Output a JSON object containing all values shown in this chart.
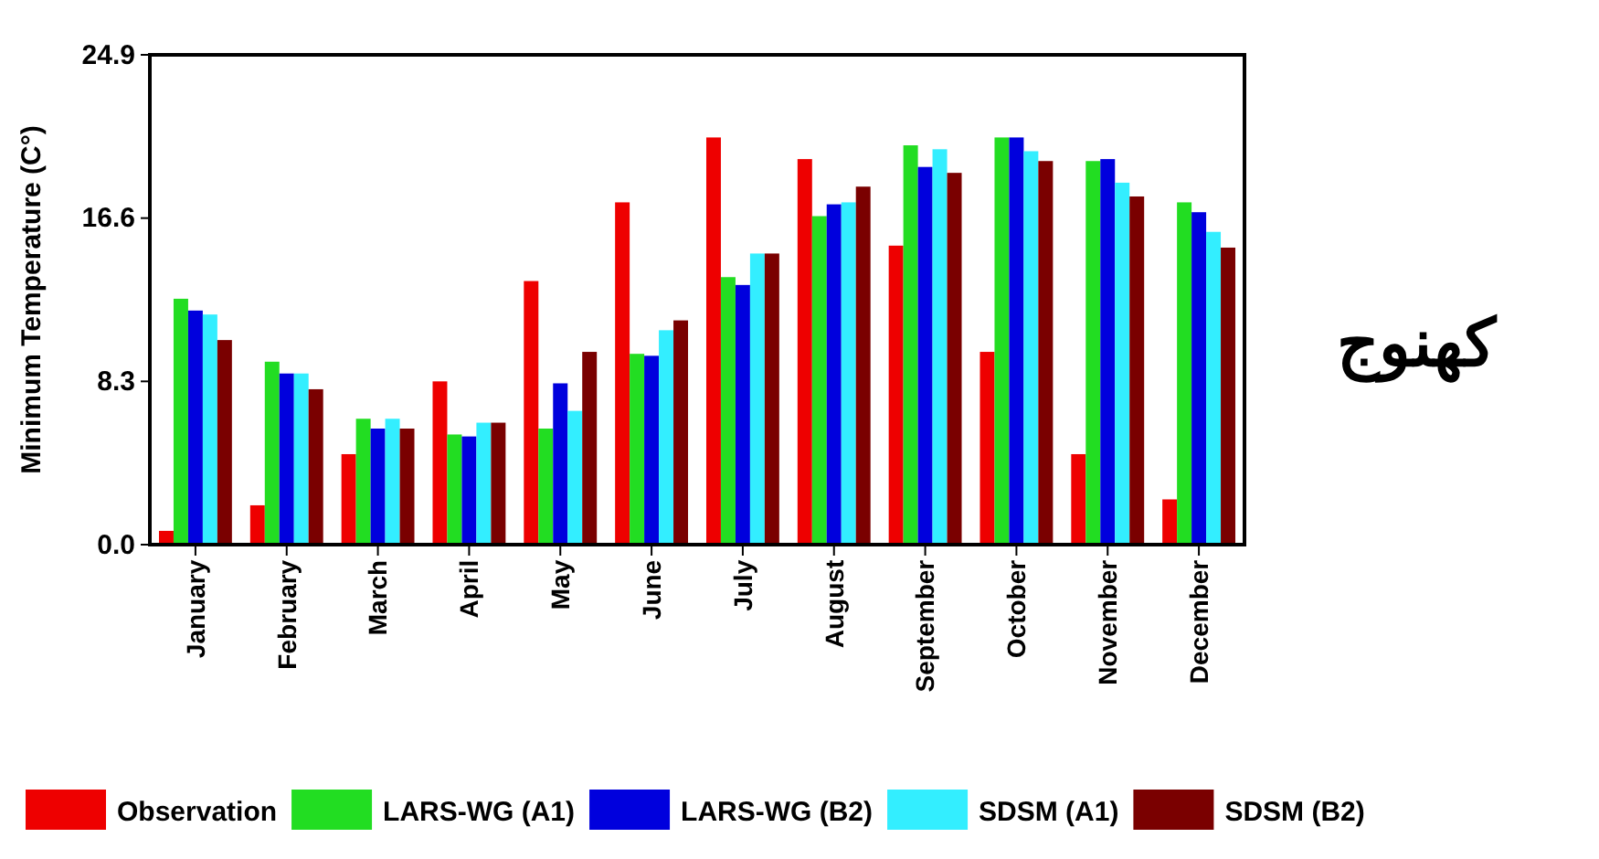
{
  "chart_data": {
    "type": "bar",
    "ylabel": "Minimum Temperature (C°)",
    "categories": [
      "January",
      "February",
      "March",
      "April",
      "May",
      "June",
      "July",
      "August",
      "September",
      "October",
      "November",
      "December"
    ],
    "series": [
      {
        "name": "Observation",
        "color": "#ee0000",
        "values": [
          0.7,
          2.0,
          4.6,
          8.3,
          13.4,
          17.4,
          20.7,
          19.6,
          15.2,
          9.8,
          4.6,
          2.3
        ]
      },
      {
        "name": "LARS-WG (A1)",
        "color": "#22dd22",
        "values": [
          12.5,
          9.3,
          6.4,
          5.6,
          5.9,
          9.7,
          13.6,
          16.7,
          20.3,
          20.7,
          19.5,
          17.4
        ]
      },
      {
        "name": "LARS-WG (B2)",
        "color": "#0000dd",
        "values": [
          11.9,
          8.7,
          5.9,
          5.5,
          8.2,
          9.6,
          13.2,
          17.3,
          19.2,
          20.7,
          19.6,
          16.9
        ]
      },
      {
        "name": "SDSM (A1)",
        "color": "#33eeff",
        "values": [
          11.7,
          8.7,
          6.4,
          6.2,
          6.8,
          10.9,
          14.8,
          17.4,
          20.1,
          20.0,
          18.4,
          15.9
        ]
      },
      {
        "name": "SDSM (B2)",
        "color": "#7a0000",
        "values": [
          10.4,
          7.9,
          5.9,
          6.2,
          9.8,
          11.4,
          14.8,
          18.2,
          18.9,
          19.5,
          17.7,
          15.1
        ]
      }
    ],
    "ylim": [
      0,
      24.9
    ],
    "yticks": [
      {
        "value": 0,
        "label": "0.0"
      },
      {
        "value": 8.3,
        "label": "8.3"
      },
      {
        "value": 16.6,
        "label": "16.6"
      },
      {
        "value": 24.9,
        "label": "24.9"
      }
    ],
    "legend": "bottom",
    "annotations": [
      "کھنوج"
    ]
  }
}
